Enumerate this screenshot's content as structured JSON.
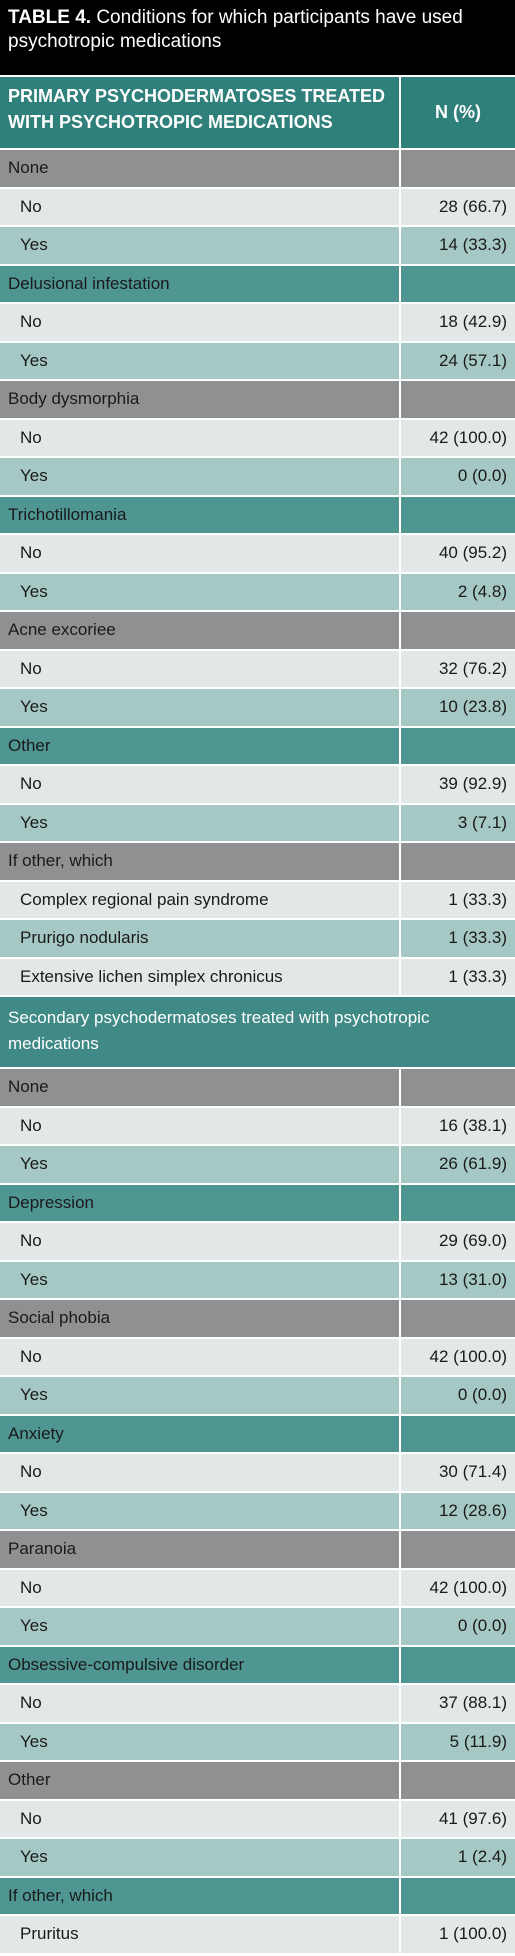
{
  "table": {
    "title_label": "TABLE 4.",
    "title": "Conditions for which participants have used psychotropic medications",
    "columns": [
      "PRIMARY PSYCHODERMATOSES TREATED WITH PSYCHOTROPIC MEDICATIONS",
      "N (%)"
    ],
    "groups": [
      {
        "label": "None",
        "rows": [
          {
            "label": "No",
            "value": "28 (66.7)"
          },
          {
            "label": "Yes",
            "value": "14 (33.3)"
          }
        ]
      },
      {
        "label": "Delusional infestation",
        "rows": [
          {
            "label": "No",
            "value": "18 (42.9)"
          },
          {
            "label": "Yes",
            "value": "24 (57.1)"
          }
        ]
      },
      {
        "label": "Body dysmorphia",
        "rows": [
          {
            "label": "No",
            "value": "42 (100.0)"
          },
          {
            "label": "Yes",
            "value": "0 (0.0)"
          }
        ]
      },
      {
        "label": "Trichotillomania",
        "rows": [
          {
            "label": "No",
            "value": "40 (95.2)"
          },
          {
            "label": "Yes",
            "value": "2 (4.8)"
          }
        ]
      },
      {
        "label": "Acne excoriee",
        "rows": [
          {
            "label": "No",
            "value": "32 (76.2)"
          },
          {
            "label": "Yes",
            "value": "10 (23.8)"
          }
        ]
      },
      {
        "label": "Other",
        "rows": [
          {
            "label": "No",
            "value": "39 (92.9)"
          },
          {
            "label": "Yes",
            "value": "3 (7.1)"
          }
        ]
      },
      {
        "label": "If other, which",
        "rows": [
          {
            "label": "Complex regional pain syndrome",
            "value": "1 (33.3)"
          },
          {
            "label": "Prurigo nodularis",
            "value": "1 (33.3)"
          },
          {
            "label": "Extensive lichen simplex chronicus",
            "value": "1 (33.3)"
          }
        ]
      }
    ],
    "secondary_heading": "Secondary psychodermatoses treated with psychotropic medications",
    "secondary_groups": [
      {
        "label": "None",
        "rows": [
          {
            "label": "No",
            "value": "16 (38.1)"
          },
          {
            "label": "Yes",
            "value": "26 (61.9)"
          }
        ]
      },
      {
        "label": "Depression",
        "rows": [
          {
            "label": "No",
            "value": "29 (69.0)"
          },
          {
            "label": "Yes",
            "value": "13 (31.0)"
          }
        ]
      },
      {
        "label": "Social phobia",
        "rows": [
          {
            "label": "No",
            "value": "42 (100.0)"
          },
          {
            "label": "Yes",
            "value": "0 (0.0)"
          }
        ]
      },
      {
        "label": "Anxiety",
        "rows": [
          {
            "label": "No",
            "value": "30 (71.4)"
          },
          {
            "label": "Yes",
            "value": "12 (28.6)"
          }
        ]
      },
      {
        "label": "Paranoia",
        "rows": [
          {
            "label": "No",
            "value": "42 (100.0)"
          },
          {
            "label": "Yes",
            "value": "0 (0.0)"
          }
        ]
      },
      {
        "label": "Obsessive-compulsive disorder",
        "rows": [
          {
            "label": "No",
            "value": "37 (88.1)"
          },
          {
            "label": "Yes",
            "value": "5 (11.9)"
          }
        ]
      },
      {
        "label": "Other",
        "rows": [
          {
            "label": "No",
            "value": "41 (97.6)"
          },
          {
            "label": "Yes",
            "value": "1 (2.4)"
          }
        ]
      },
      {
        "label": "If other, which",
        "rows": [
          {
            "label": "Pruritus",
            "value": "1 (100.0)"
          }
        ]
      }
    ]
  }
}
